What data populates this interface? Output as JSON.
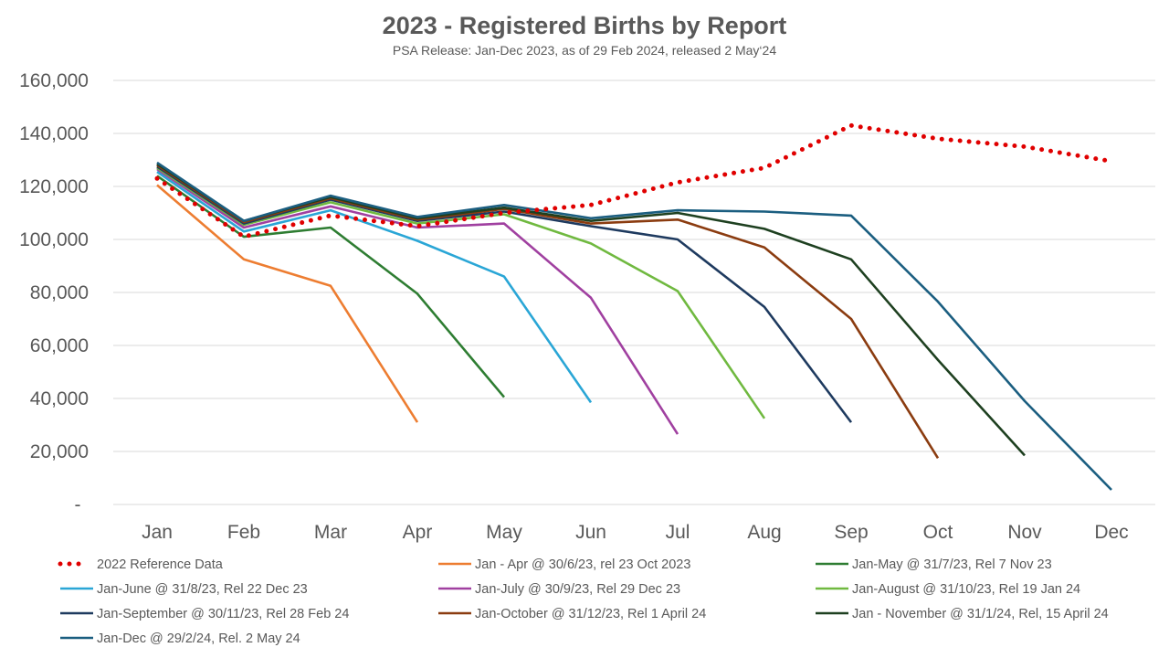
{
  "chart_data": {
    "type": "line",
    "title": "2023 - Registered Births by Report",
    "subtitle": "PSA Release: Jan-Dec 2023, as of 29 Feb 2024, released 2 May‘24",
    "xlabel": "",
    "ylabel": "",
    "categories": [
      "Jan",
      "Feb",
      "Mar",
      "Apr",
      "May",
      "Jun",
      "Jul",
      "Aug",
      "Sep",
      "Oct",
      "Nov",
      "Dec"
    ],
    "ylim": [
      0,
      160000
    ],
    "y_ticks": [
      0,
      20000,
      40000,
      60000,
      80000,
      100000,
      120000,
      140000,
      160000
    ],
    "y_tick_labels": [
      "-",
      "20,000",
      "40,000",
      "60,000",
      "80,000",
      "100,000",
      "120,000",
      "140,000",
      "160,000"
    ],
    "grid": "horizontal",
    "legend_position": "bottom",
    "series": [
      {
        "name": "2022 Reference Data",
        "color": "#e00000",
        "style": "dotted",
        "values": [
          123000,
          101000,
          109000,
          105000,
          110000,
          113000,
          121500,
          127000,
          143000,
          138000,
          135000,
          129500
        ]
      },
      {
        "name": "Jan - Apr @ 30/6/23, rel 23 Oct 2023",
        "color": "#ed7d31",
        "style": "solid",
        "values": [
          120500,
          92500,
          82500,
          31000,
          null,
          null,
          null,
          null,
          null,
          null,
          null,
          null
        ]
      },
      {
        "name": "Jan-May @ 31/7/23, Rel 7 Nov 23",
        "color": "#2e7d32",
        "style": "solid",
        "values": [
          124000,
          101000,
          104500,
          79500,
          40500,
          null,
          null,
          null,
          null,
          null,
          null,
          null
        ]
      },
      {
        "name": "Jan-June @ 31/8/23, Rel 22 Dec 23",
        "color": "#2aa6d6",
        "style": "solid",
        "values": [
          125500,
          103000,
          111000,
          99500,
          86000,
          38500,
          null,
          null,
          null,
          null,
          null,
          null
        ]
      },
      {
        "name": "Jan-July @ 30/9/23, Rel 29 Dec 23",
        "color": "#a040a0",
        "style": "solid",
        "values": [
          126500,
          104500,
          112500,
          104500,
          106000,
          78000,
          26500,
          null,
          null,
          null,
          null,
          null
        ]
      },
      {
        "name": "Jan-August @ 31/10/23, Rel 19 Jan 24",
        "color": "#70b940",
        "style": "solid",
        "values": [
          127000,
          105500,
          114000,
          106000,
          109500,
          98500,
          80500,
          32500,
          null,
          null,
          null,
          null
        ]
      },
      {
        "name": "Jan-September @ 30/11/23, Rel 28 Feb 24",
        "color": "#1e3a5f",
        "style": "solid",
        "values": [
          127500,
          106000,
          115000,
          107000,
          110500,
          105000,
          100000,
          74500,
          31000,
          null,
          null,
          null
        ]
      },
      {
        "name": "Jan-October @ 31/12/23, Rel 1 April 24",
        "color": "#8b3c10",
        "style": "solid",
        "values": [
          128000,
          106500,
          115500,
          107500,
          111500,
          106000,
          107500,
          97000,
          70000,
          17500,
          null,
          null
        ]
      },
      {
        "name": "Jan - November @ 31/1/24, Rel, 15 April 24",
        "color": "#1e4020",
        "style": "solid",
        "values": [
          128500,
          107000,
          116000,
          108000,
          112000,
          107000,
          110000,
          104000,
          92500,
          54500,
          18500,
          null
        ]
      },
      {
        "name": "Jan-Dec @ 29/2/24, Rel. 2 May 24",
        "color": "#1b5e80",
        "style": "solid",
        "values": [
          129000,
          107000,
          116500,
          108500,
          113000,
          108000,
          111000,
          110500,
          109000,
          76500,
          39000,
          5500
        ]
      }
    ]
  }
}
